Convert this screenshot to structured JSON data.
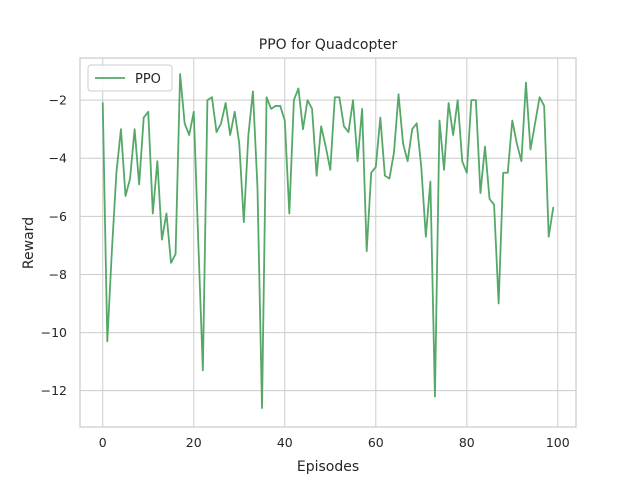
{
  "chart_data": {
    "type": "line",
    "title": "PPO for Quadcopter",
    "xlabel": "Episodes",
    "ylabel": "Reward",
    "xlim": [
      -5,
      104
    ],
    "ylim": [
      -13.25,
      -0.55
    ],
    "x_ticks": [
      0,
      20,
      40,
      60,
      80,
      100
    ],
    "y_ticks": [
      -12,
      -10,
      -8,
      -6,
      -4,
      -2
    ],
    "grid": true,
    "legend_placement": "top-left",
    "series": [
      {
        "name": "PPO",
        "color": "#55a868",
        "x": [
          0,
          1,
          2,
          3,
          4,
          5,
          6,
          7,
          8,
          9,
          10,
          11,
          12,
          13,
          14,
          15,
          16,
          17,
          18,
          19,
          20,
          21,
          22,
          23,
          24,
          25,
          26,
          27,
          28,
          29,
          30,
          31,
          32,
          33,
          34,
          35,
          36,
          37,
          38,
          39,
          40,
          41,
          42,
          43,
          44,
          45,
          46,
          47,
          48,
          49,
          50,
          51,
          52,
          53,
          54,
          55,
          56,
          57,
          58,
          59,
          60,
          61,
          62,
          63,
          64,
          65,
          66,
          67,
          68,
          69,
          70,
          71,
          72,
          73,
          74,
          75,
          76,
          77,
          78,
          79,
          80,
          81,
          82,
          83,
          84,
          85,
          86,
          87,
          88,
          89,
          90,
          91,
          92,
          93,
          94,
          95,
          96,
          97,
          98,
          99
        ],
        "values": [
          -2.1,
          -10.3,
          -7.2,
          -4.5,
          -3.0,
          -5.3,
          -4.7,
          -3.0,
          -4.9,
          -2.6,
          -2.4,
          -5.9,
          -4.1,
          -6.8,
          -5.9,
          -7.6,
          -7.3,
          -1.1,
          -2.8,
          -3.2,
          -2.4,
          -6.9,
          -11.3,
          -2.0,
          -1.9,
          -3.1,
          -2.8,
          -2.1,
          -3.2,
          -2.4,
          -3.5,
          -6.2,
          -3.2,
          -1.7,
          -5.0,
          -12.6,
          -1.9,
          -2.3,
          -2.2,
          -2.2,
          -2.7,
          -5.9,
          -2.0,
          -1.6,
          -3.0,
          -2.0,
          -2.3,
          -4.6,
          -2.9,
          -3.6,
          -4.4,
          -1.9,
          -1.9,
          -2.9,
          -3.1,
          -2.0,
          -4.1,
          -2.3,
          -7.2,
          -4.5,
          -4.3,
          -2.6,
          -4.6,
          -4.7,
          -3.8,
          -1.8,
          -3.5,
          -4.1,
          -3.0,
          -2.8,
          -4.3,
          -6.7,
          -4.8,
          -12.2,
          -2.7,
          -4.4,
          -2.1,
          -3.2,
          -2.0,
          -4.1,
          -4.5,
          -2.0,
          -2.0,
          -5.2,
          -3.6,
          -5.4,
          -5.6,
          -9.0,
          -4.5,
          -4.5,
          -2.7,
          -3.5,
          -4.1,
          -1.4,
          -3.7,
          -2.8,
          -1.9,
          -2.2,
          -6.7,
          -5.7
        ]
      }
    ]
  }
}
